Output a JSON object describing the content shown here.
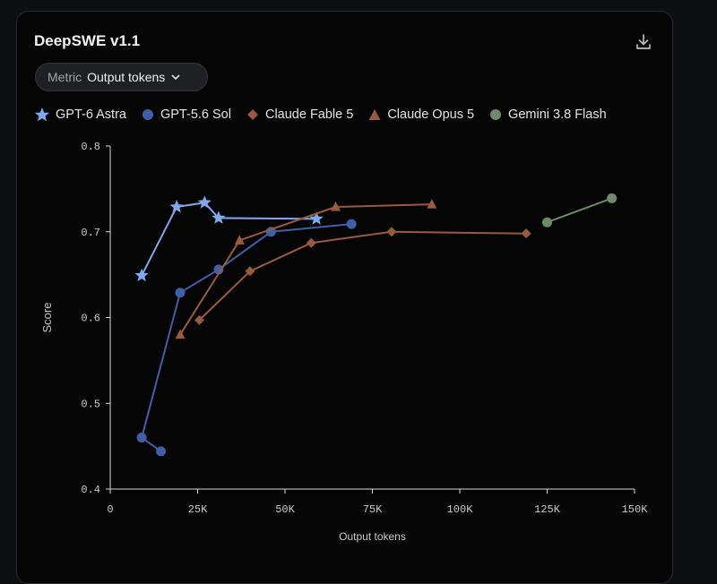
{
  "header": {
    "title": "DeepSWE v1.1",
    "download_icon": "download-icon"
  },
  "metric_select": {
    "label": "Metric",
    "value": "Output tokens",
    "icon": "chevron-down-icon"
  },
  "chart_data": {
    "type": "line",
    "xlabel": "Output tokens",
    "ylabel": "Score",
    "xlim": [
      0,
      150000
    ],
    "ylim": [
      0.4,
      0.8
    ],
    "x_ticks": [
      0,
      25000,
      50000,
      75000,
      100000,
      125000,
      150000
    ],
    "x_tick_labels": [
      "0",
      "25K",
      "50K",
      "75K",
      "100K",
      "125K",
      "150K"
    ],
    "y_ticks": [
      0.4,
      0.5,
      0.6,
      0.7,
      0.8
    ],
    "y_tick_labels": [
      "0.4",
      "0.5",
      "0.6",
      "0.7",
      "0.8"
    ],
    "grid": false,
    "legend_position": "top-left",
    "series": [
      {
        "name": "GPT-6 Astra",
        "marker": "star",
        "color": "#7fa9ee",
        "x": [
          9000,
          19000,
          27000,
          31000,
          59000
        ],
        "y": [
          0.649,
          0.729,
          0.734,
          0.716,
          0.715
        ]
      },
      {
        "name": "GPT-5.6 Sol",
        "marker": "circle",
        "color": "#3f5fa8",
        "x": [
          14500,
          9000,
          20000,
          31000,
          46000,
          69000
        ],
        "y": [
          0.444,
          0.46,
          0.629,
          0.656,
          0.7,
          0.709
        ]
      },
      {
        "name": "Claude Fable 5",
        "marker": "diamond",
        "color": "#9a5a3e",
        "x": [
          25500,
          40000,
          57500,
          80500,
          119000
        ],
        "y": [
          0.597,
          0.654,
          0.687,
          0.7,
          0.698
        ]
      },
      {
        "name": "Claude Opus 5",
        "marker": "triangle",
        "color": "#9a5a3e",
        "x": [
          20000,
          37000,
          64500,
          92000
        ],
        "y": [
          0.58,
          0.69,
          0.729,
          0.732
        ]
      },
      {
        "name": "Gemini 3.8 Flash",
        "marker": "circle",
        "color": "#6d8a6a",
        "x": [
          125000,
          143500
        ],
        "y": [
          0.711,
          0.739
        ]
      }
    ]
  }
}
